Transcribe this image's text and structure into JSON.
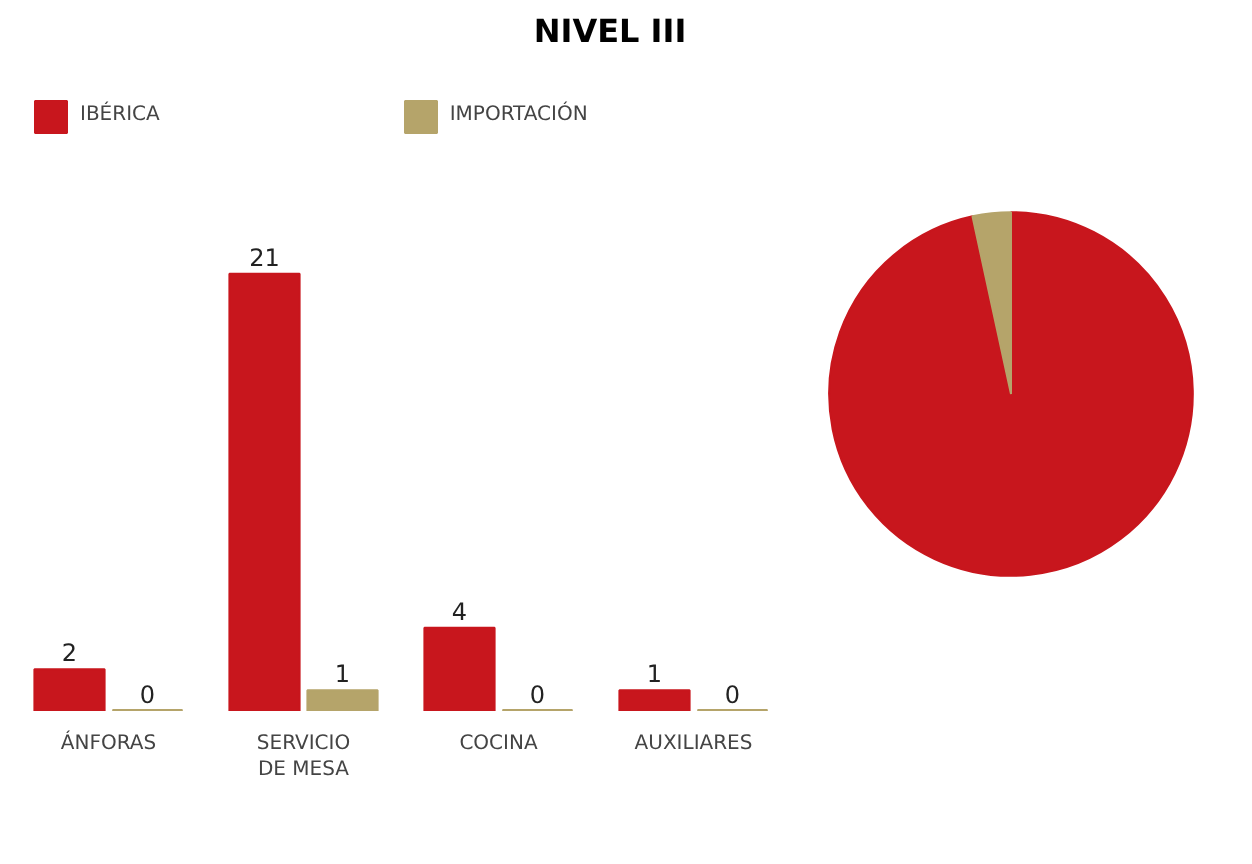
{
  "chart_data": [
    {
      "type": "bar",
      "title": "NIVEL III",
      "categories": [
        "ÁNFORAS",
        "SERVICIO DE MESA",
        "COCINA",
        "AUXILIARES"
      ],
      "series": [
        {
          "name": "IBÉRICA",
          "color": "#c8161d",
          "values": [
            2,
            21,
            4,
            1
          ]
        },
        {
          "name": "IMPORTACIÓN",
          "color": "#b5a46a",
          "values": [
            0,
            1,
            0,
            0
          ]
        }
      ],
      "data_labels": true,
      "legend": "top left",
      "grid": false
    },
    {
      "type": "pie",
      "categories": [
        null,
        null
      ],
      "values": [
        96.6,
        3.4
      ],
      "colors": [
        "#c8161d",
        "#b5a46a"
      ]
    }
  ]
}
